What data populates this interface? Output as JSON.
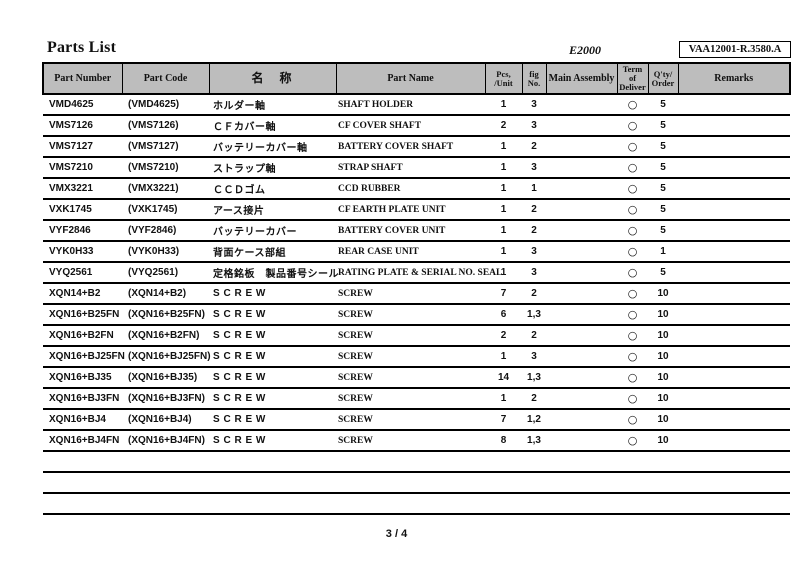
{
  "page": {
    "title": "Parts List",
    "model": "E2000",
    "doc_number": "VAA12001-R.3580.A",
    "page_number": "3 / 4"
  },
  "table": {
    "headers": {
      "part_number": "Part Number",
      "part_code": "Part Code",
      "name_jp": "名　称",
      "part_name": "Part Name",
      "pcs_unit": "Pcs,\n/Unit",
      "fig_no": "fig\nNo.",
      "main_assembly": "Main Assembly",
      "term_of_deliver": "Term\nof\nDeliver",
      "qty_order": "Q'ty/\nOrder",
      "remarks": "Remarks"
    },
    "empty_row_count": 3,
    "rows": [
      {
        "part_number": "VMD4625",
        "part_code": "(VMD4625)",
        "name_jp": "ホルダー軸",
        "part_name": "SHAFT HOLDER",
        "pcs": "1",
        "fig": "3",
        "main_assembly": "",
        "deliver": "○",
        "qty": "5",
        "remarks": ""
      },
      {
        "part_number": "VMS7126",
        "part_code": "(VMS7126)",
        "name_jp": "ＣＦカバー軸",
        "part_name": "CF COVER SHAFT",
        "pcs": "2",
        "fig": "3",
        "main_assembly": "",
        "deliver": "○",
        "qty": "5",
        "remarks": ""
      },
      {
        "part_number": "VMS7127",
        "part_code": "(VMS7127)",
        "name_jp": "バッテリーカバー軸",
        "part_name": "BATTERY COVER SHAFT",
        "pcs": "1",
        "fig": "2",
        "main_assembly": "",
        "deliver": "○",
        "qty": "5",
        "remarks": ""
      },
      {
        "part_number": "VMS7210",
        "part_code": "(VMS7210)",
        "name_jp": "ストラップ軸",
        "part_name": "STRAP SHAFT",
        "pcs": "1",
        "fig": "3",
        "main_assembly": "",
        "deliver": "○",
        "qty": "5",
        "remarks": ""
      },
      {
        "part_number": "VMX3221",
        "part_code": "(VMX3221)",
        "name_jp": "ＣＣＤゴム",
        "part_name": "CCD RUBBER",
        "pcs": "1",
        "fig": "1",
        "main_assembly": "",
        "deliver": "○",
        "qty": "5",
        "remarks": ""
      },
      {
        "part_number": "VXK1745",
        "part_code": "(VXK1745)",
        "name_jp": "アース接片",
        "part_name": "CF EARTH PLATE UNIT",
        "pcs": "1",
        "fig": "2",
        "main_assembly": "",
        "deliver": "○",
        "qty": "5",
        "remarks": ""
      },
      {
        "part_number": "VYF2846",
        "part_code": "(VYF2846)",
        "name_jp": "バッテリーカバー",
        "part_name": "BATTERY COVER UNIT",
        "pcs": "1",
        "fig": "2",
        "main_assembly": "",
        "deliver": "○",
        "qty": "5",
        "remarks": ""
      },
      {
        "part_number": "VYK0H33",
        "part_code": "(VYK0H33)",
        "name_jp": "背面ケース部組",
        "part_name": "REAR CASE UNIT",
        "pcs": "1",
        "fig": "3",
        "main_assembly": "",
        "deliver": "○",
        "qty": "1",
        "remarks": ""
      },
      {
        "part_number": "VYQ2561",
        "part_code": "(VYQ2561)",
        "name_jp": "定格銘板　製品番号シール",
        "part_name": "RATING PLATE & SERIAL NO. SEAL",
        "pcs": "1",
        "fig": "3",
        "main_assembly": "",
        "deliver": "○",
        "qty": "5",
        "remarks": ""
      },
      {
        "part_number": "XQN14+B2",
        "part_code": "(XQN14+B2)",
        "name_jp": "S C R E W",
        "part_name": "SCREW",
        "pcs": "7",
        "fig": "2",
        "main_assembly": "",
        "deliver": "○",
        "qty": "10",
        "remarks": ""
      },
      {
        "part_number": "XQN16+B25FN",
        "part_code": "(XQN16+B25FN)",
        "name_jp": "S C R E W",
        "part_name": "SCREW",
        "pcs": "6",
        "fig": "1,3",
        "main_assembly": "",
        "deliver": "○",
        "qty": "10",
        "remarks": ""
      },
      {
        "part_number": "XQN16+B2FN",
        "part_code": "(XQN16+B2FN)",
        "name_jp": "S C R E W",
        "part_name": "SCREW",
        "pcs": "2",
        "fig": "2",
        "main_assembly": "",
        "deliver": "○",
        "qty": "10",
        "remarks": ""
      },
      {
        "part_number": "XQN16+BJ25FN",
        "part_code": "(XQN16+BJ25FN)",
        "name_jp": "S C R E W",
        "part_name": "SCREW",
        "pcs": "1",
        "fig": "3",
        "main_assembly": "",
        "deliver": "○",
        "qty": "10",
        "remarks": ""
      },
      {
        "part_number": "XQN16+BJ35",
        "part_code": "(XQN16+BJ35)",
        "name_jp": "S C R E W",
        "part_name": "SCREW",
        "pcs": "14",
        "fig": "1,3",
        "main_assembly": "",
        "deliver": "○",
        "qty": "10",
        "remarks": ""
      },
      {
        "part_number": "XQN16+BJ3FN",
        "part_code": "(XQN16+BJ3FN)",
        "name_jp": "S C R E W",
        "part_name": "SCREW",
        "pcs": "1",
        "fig": "2",
        "main_assembly": "",
        "deliver": "○",
        "qty": "10",
        "remarks": ""
      },
      {
        "part_number": "XQN16+BJ4",
        "part_code": "(XQN16+BJ4)",
        "name_jp": "S C R E W",
        "part_name": "SCREW",
        "pcs": "7",
        "fig": "1,2",
        "main_assembly": "",
        "deliver": "○",
        "qty": "10",
        "remarks": ""
      },
      {
        "part_number": "XQN16+BJ4FN",
        "part_code": "(XQN16+BJ4FN)",
        "name_jp": "S C R E W",
        "part_name": "SCREW",
        "pcs": "8",
        "fig": "1,3",
        "main_assembly": "",
        "deliver": "○",
        "qty": "10",
        "remarks": ""
      }
    ]
  }
}
